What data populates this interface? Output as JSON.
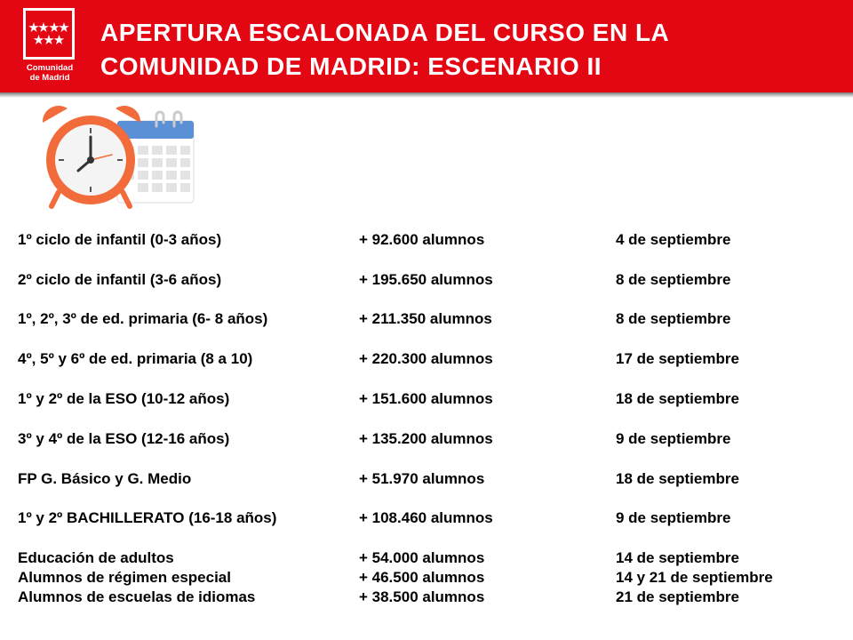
{
  "header": {
    "title_line1": "APERTURA ESCALONADA DEL CURSO EN LA",
    "title_line2": "COMUNIDAD DE MADRID: ESCENARIO II",
    "logo": {
      "line1": "Comunidad",
      "line2": "de Madrid"
    }
  },
  "illustration": {
    "icons": [
      "alarm-clock-icon",
      "calendar-icon"
    ]
  },
  "schedule": [
    {
      "group": "1º ciclo de infantil (0-3 años)",
      "students": "+ 92.600 alumnos",
      "date": "4 de septiembre"
    },
    {
      "group": "2º ciclo de infantil (3-6 años)",
      "students": "+ 195.650 alumnos",
      "date": "8 de septiembre"
    },
    {
      "group": "1º, 2º, 3º de ed. primaria (6- 8 años)",
      "students": "+ 211.350 alumnos",
      "date": "8 de septiembre"
    },
    {
      "group": "4º, 5º y 6º de ed. primaria (8 a 10)",
      "students": "+ 220.300 alumnos",
      "date": "17 de septiembre"
    },
    {
      "group": "1º y 2º de la ESO (10-12 años)",
      "students": "+ 151.600 alumnos",
      "date": "18 de septiembre"
    },
    {
      "group": "3º y 4º de la ESO (12-16 años)",
      "students": " + 135.200 alumnos",
      "date": "9  de septiembre"
    },
    {
      "group": "FP G. Básico y G. Medio",
      "students": "+ 51.970  alumnos",
      "date": "18 de septiembre"
    },
    {
      "group": "1º y 2º BACHILLERATO (16-18 años)",
      "students": "+ 108.460 alumnos",
      "date": "9 de septiembre"
    },
    {
      "group": "Educación de adultos",
      "students": "+ 54.000 alumnos",
      "date": "14 de septiembre"
    },
    {
      "group": "Alumnos de régimen especial",
      "students": "+ 46.500 alumnos",
      "date": "14 y 21 de septiembre"
    },
    {
      "group": "Alumnos de escuelas de idiomas",
      "students": "+ 38.500 alumnos",
      "date": "21 de septiembre"
    }
  ],
  "colors": {
    "header": "#e30613",
    "clock": "#f26b3a",
    "calendar": "#5b8fd6"
  }
}
